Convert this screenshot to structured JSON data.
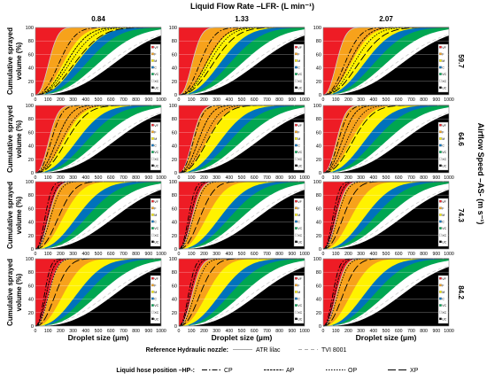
{
  "figure": {
    "top_title": "Liquid Flow Rate –LFR- (L min⁻¹)",
    "right_title": "Airflow Speed –AS- (m s⁻¹)",
    "y_axis_label_line1": "Cumulative sprayed",
    "y_axis_label_line2": "volume (%)",
    "x_axis_label": "Droplet size (µm)"
  },
  "columns": [
    "0.84",
    "1.33",
    "2.07"
  ],
  "rows": [
    "59.7",
    "64.6",
    "74.3",
    "84.2"
  ],
  "x_ticks": [
    0,
    100,
    200,
    300,
    400,
    500,
    600,
    700,
    800,
    900,
    1000
  ],
  "y_ticks": [
    0,
    20,
    40,
    60,
    80,
    100
  ],
  "bands": [
    {
      "code": "VF",
      "color": "#ee1c25",
      "d50": 0,
      "shape": 2.0
    },
    {
      "code": "F",
      "color": "#f7a21b",
      "d50": 110,
      "shape": 2.3
    },
    {
      "code": "M",
      "color": "#fff200",
      "d50": 230,
      "shape": 2.3
    },
    {
      "code": "C",
      "color": "#0072bc",
      "d50": 340,
      "shape": 2.4
    },
    {
      "code": "VC",
      "color": "#00a651",
      "d50": 420,
      "shape": 2.5
    },
    {
      "code": "XC",
      "color": "#ffffff",
      "d50": 520,
      "shape": 2.5
    },
    {
      "code": "UC",
      "color": "#000000",
      "d50": 650,
      "shape": 2.6
    }
  ],
  "reference_legend": {
    "label": "Reference Hydraulic nozzle:",
    "items": [
      {
        "name": "ATR lilac",
        "dash": "solid",
        "color": "#cccccc"
      },
      {
        "name": "TVI 8001",
        "dash": "dashed",
        "color": "#cccccc"
      }
    ]
  },
  "hose_legend": {
    "label": "Liquid hose position –HP-:",
    "items": [
      {
        "name": "CP",
        "dash": "dashdot"
      },
      {
        "name": "AP",
        "dash": "dense-dash"
      },
      {
        "name": "OP",
        "dash": "short-dash"
      },
      {
        "name": "XP",
        "dash": "long-dash"
      }
    ]
  },
  "chart_data": {
    "type": "line",
    "layout": "small-multiples 4 rows (airflow speed) x 3 columns (liquid flow rate)",
    "xlim": [
      0,
      1000
    ],
    "ylim": [
      0,
      100
    ],
    "model": "cumulative volume = 100*(1-exp(-ln2*(x/D50)^shape)); D50 in µm",
    "panels": [
      {
        "col": "0.84",
        "row": "59.7",
        "D50": {
          "CP": 195,
          "AP": 255,
          "OP": 285,
          "XP": 325
        }
      },
      {
        "col": "1.33",
        "row": "59.7",
        "D50": {
          "CP": 175,
          "AP": 225,
          "OP": 250,
          "XP": 285
        }
      },
      {
        "col": "2.07",
        "row": "59.7",
        "D50": {
          "CP": 180,
          "AP": 215,
          "OP": 255,
          "XP": 295
        }
      },
      {
        "col": "0.84",
        "row": "64.6",
        "D50": {
          "CP": 130,
          "AP": 175,
          "OP": 215,
          "XP": 255
        }
      },
      {
        "col": "1.33",
        "row": "64.6",
        "D50": {
          "CP": 120,
          "AP": 160,
          "OP": 200,
          "XP": 235
        }
      },
      {
        "col": "2.07",
        "row": "64.6",
        "D50": {
          "CP": 125,
          "AP": 155,
          "OP": 195,
          "XP": 245
        }
      },
      {
        "col": "0.84",
        "row": "74.3",
        "D50": {
          "CP": 80,
          "AP": 100,
          "OP": 125,
          "XP": 190
        }
      },
      {
        "col": "1.33",
        "row": "74.3",
        "D50": {
          "CP": 80,
          "AP": 95,
          "OP": 120,
          "XP": 175
        }
      },
      {
        "col": "2.07",
        "row": "74.3",
        "D50": {
          "CP": 80,
          "AP": 95,
          "OP": 120,
          "XP": 165
        }
      },
      {
        "col": "0.84",
        "row": "84.2",
        "D50": {
          "CP": 75,
          "AP": 90,
          "OP": 110,
          "XP": 165
        }
      },
      {
        "col": "1.33",
        "row": "84.2",
        "D50": {
          "CP": 80,
          "AP": 95,
          "OP": 130,
          "XP": 175
        }
      },
      {
        "col": "2.07",
        "row": "84.2",
        "D50": {
          "CP": 80,
          "AP": 95,
          "OP": 120,
          "XP": 165
        }
      }
    ],
    "reference_d50": {
      "ATR lilac": 110,
      "TVI 8001": 600
    },
    "curve_shape": 2.3
  }
}
